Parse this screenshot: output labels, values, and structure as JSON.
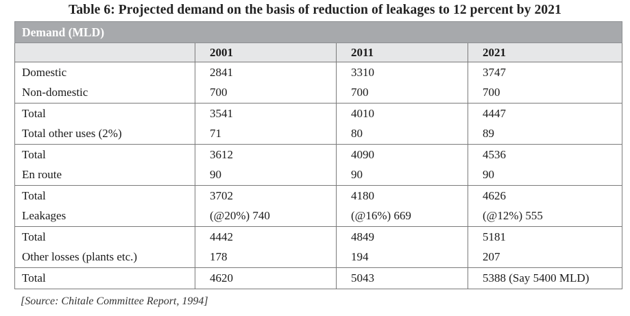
{
  "title": "Table 6: Projected demand on the basis of reduction of leakages to 12 percent by 2021",
  "header_band": "Demand (MLD)",
  "years": [
    "2001",
    "2011",
    "2021"
  ],
  "groups": [
    {
      "rows": [
        {
          "label": "Domestic",
          "values": [
            "2841",
            "3310",
            "3747"
          ]
        },
        {
          "label": "Non-domestic",
          "values": [
            "700",
            "700",
            "700"
          ]
        }
      ]
    },
    {
      "rows": [
        {
          "label": "Total",
          "values": [
            "3541",
            "4010",
            "4447"
          ]
        },
        {
          "label": "Total other uses (2%)",
          "values": [
            "71",
            "80",
            "89"
          ]
        }
      ]
    },
    {
      "rows": [
        {
          "label": "Total",
          "values": [
            "3612",
            "4090",
            "4536"
          ]
        },
        {
          "label": "En route",
          "values": [
            "90",
            "90",
            "90"
          ]
        }
      ]
    },
    {
      "rows": [
        {
          "label": "Total",
          "values": [
            "3702",
            "4180",
            "4626"
          ]
        },
        {
          "label": "Leakages",
          "values": [
            "(@20%) 740",
            "(@16%) 669",
            "(@12%) 555"
          ]
        }
      ]
    },
    {
      "rows": [
        {
          "label": "Total",
          "values": [
            "4442",
            "4849",
            "5181"
          ]
        },
        {
          "label": "Other losses (plants etc.)",
          "values": [
            "178",
            "194",
            "207"
          ]
        }
      ]
    },
    {
      "rows": [
        {
          "label": "Total",
          "values": [
            "4620",
            "5043",
            "5388 (Say 5400 MLD)"
          ]
        }
      ]
    }
  ],
  "source": "[Source: Chitale Committee Report, 1994]"
}
